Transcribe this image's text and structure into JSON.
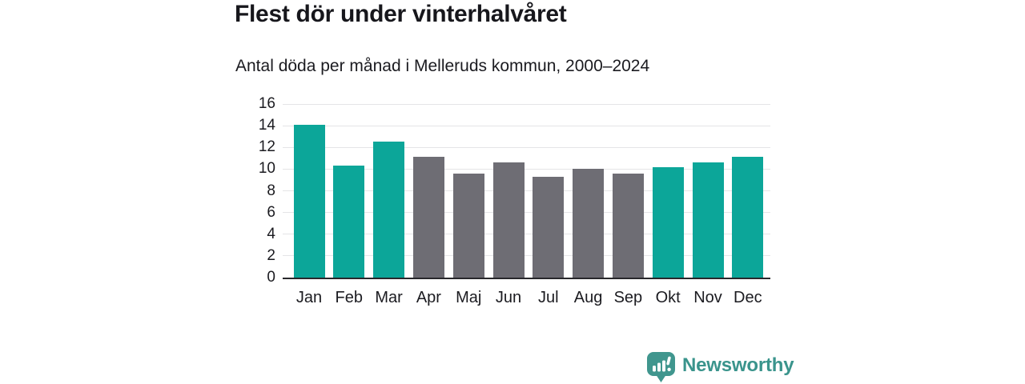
{
  "header": {
    "title": "Flest dör under vinterhalvåret",
    "subtitle": "Antal döda per månad i Melleruds kommun, 2000–2024"
  },
  "chart_data": {
    "type": "bar",
    "title": "Flest dör under vinterhalvåret",
    "subtitle": "Antal döda per månad i Melleruds kommun, 2000–2024",
    "categories": [
      "Jan",
      "Feb",
      "Mar",
      "Apr",
      "Maj",
      "Jun",
      "Jul",
      "Aug",
      "Sep",
      "Okt",
      "Nov",
      "Dec"
    ],
    "values": [
      14.1,
      10.3,
      12.5,
      11.1,
      9.6,
      10.6,
      9.3,
      10.0,
      9.6,
      10.2,
      10.6,
      11.1
    ],
    "bar_color_keys": [
      "teal",
      "teal",
      "teal",
      "gray",
      "gray",
      "gray",
      "gray",
      "gray",
      "gray",
      "teal",
      "teal",
      "teal"
    ],
    "colors": {
      "teal": "#0ca699",
      "gray": "#6e6d74"
    },
    "y_ticks": [
      0,
      2,
      4,
      6,
      8,
      10,
      12,
      14,
      16
    ],
    "ylim": [
      0,
      16
    ],
    "xlabel": "",
    "ylabel": "",
    "grid": true,
    "legend": "none"
  },
  "footer": {
    "brand": "Newsworthy",
    "brand_color": "#3a948c",
    "icon_color": "#40968e",
    "logo_icon": "bar-chart-speech-bubble-icon"
  }
}
